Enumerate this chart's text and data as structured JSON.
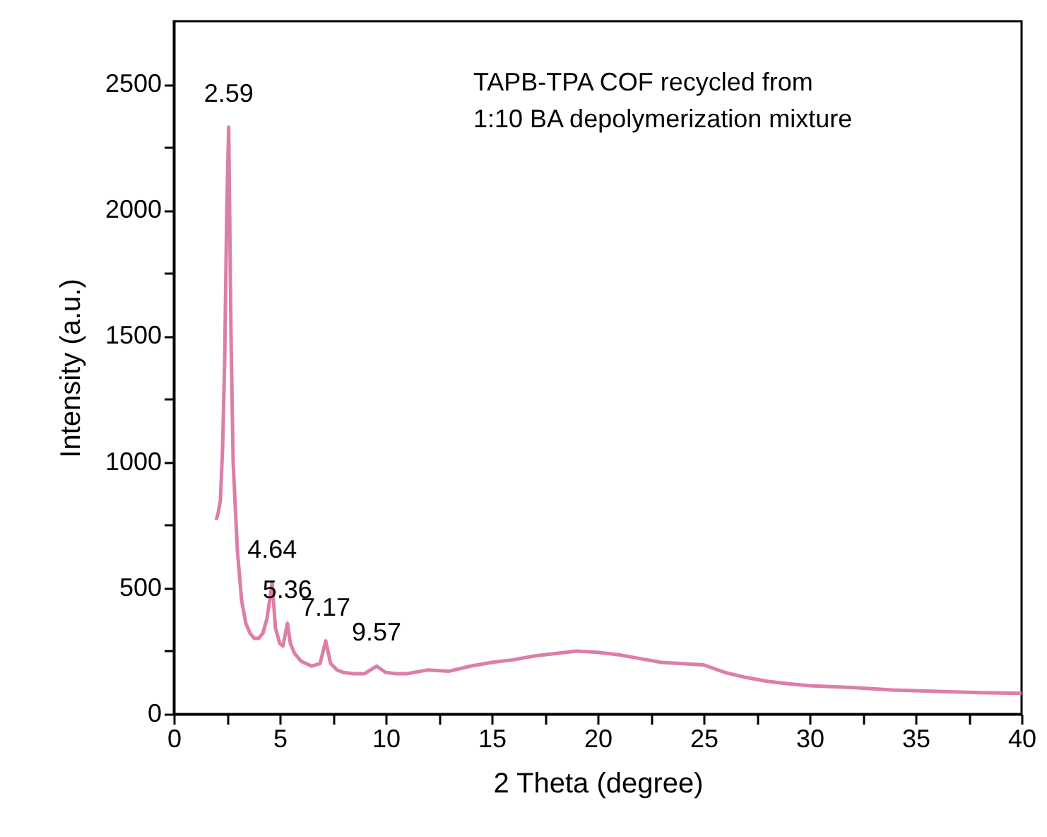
{
  "chart_data": {
    "type": "line",
    "xlabel": "2 Theta (degree)",
    "ylabel": "Intensity (a.u.)",
    "x": [
      2.0,
      2.1,
      2.2,
      2.3,
      2.4,
      2.5,
      2.59,
      2.7,
      2.8,
      3.0,
      3.2,
      3.4,
      3.6,
      3.8,
      4.0,
      4.2,
      4.4,
      4.64,
      4.8,
      5.0,
      5.15,
      5.36,
      5.5,
      5.7,
      6.0,
      6.5,
      6.9,
      7.17,
      7.4,
      7.7,
      8.0,
      8.5,
      9.0,
      9.57,
      10.0,
      10.5,
      11.0,
      12.0,
      13.0,
      14.0,
      15.0,
      16.0,
      17.0,
      18.0,
      19.0,
      20.0,
      21.0,
      22.0,
      23.0,
      24.0,
      25.0,
      26.0,
      27.0,
      28.0,
      29.0,
      30.0,
      32.0,
      34.0,
      36.0,
      38.0,
      40.0
    ],
    "series": [
      {
        "color": "#dc7fa8",
        "values": [
          770,
          800,
          850,
          1050,
          1400,
          2000,
          2330,
          1500,
          1000,
          650,
          450,
          360,
          320,
          300,
          300,
          320,
          380,
          520,
          340,
          280,
          270,
          360,
          280,
          240,
          210,
          190,
          200,
          290,
          200,
          175,
          165,
          160,
          160,
          190,
          165,
          160,
          160,
          175,
          170,
          190,
          205,
          215,
          230,
          240,
          250,
          245,
          235,
          220,
          205,
          200,
          195,
          165,
          145,
          130,
          120,
          112,
          105,
          95,
          90,
          85,
          82
        ]
      }
    ],
    "xlim": [
      0,
      40
    ],
    "ylim": [
      0,
      2750
    ],
    "xticks": [
      0,
      {
        "value": 2.5,
        "label": null
      },
      5,
      {
        "value": 7.5,
        "label": null
      },
      10,
      {
        "value": 12.5,
        "label": null
      },
      15,
      {
        "value": 17.5,
        "label": null
      },
      20,
      {
        "value": 22.5,
        "label": null
      },
      25,
      {
        "value": 27.5,
        "label": null
      },
      30,
      {
        "value": 32.5,
        "label": null
      },
      35,
      {
        "value": 37.5,
        "label": null
      },
      40
    ],
    "yticks": [
      0,
      {
        "value": 250,
        "label": null
      },
      500,
      {
        "value": 750,
        "label": null
      },
      1000,
      {
        "value": 1250,
        "label": null
      },
      1500,
      {
        "value": 1750,
        "label": null
      },
      2000,
      {
        "value": 2250,
        "label": null
      },
      2500
    ],
    "marker": "none",
    "line_style": "solid",
    "grid": false,
    "annotations": [
      {
        "text": "2.59",
        "x": 2.59,
        "y": 2330
      },
      {
        "text": "4.64",
        "x": 4.64,
        "y": 520
      },
      {
        "text": "5.36",
        "x": 5.36,
        "y": 360
      },
      {
        "text": "7.17",
        "x": 7.17,
        "y": 290
      },
      {
        "text": "9.57",
        "x": 9.57,
        "y": 190
      },
      "TAPB-TPA COF recycled from\n1:10 BA depolymerization mixture"
    ]
  }
}
